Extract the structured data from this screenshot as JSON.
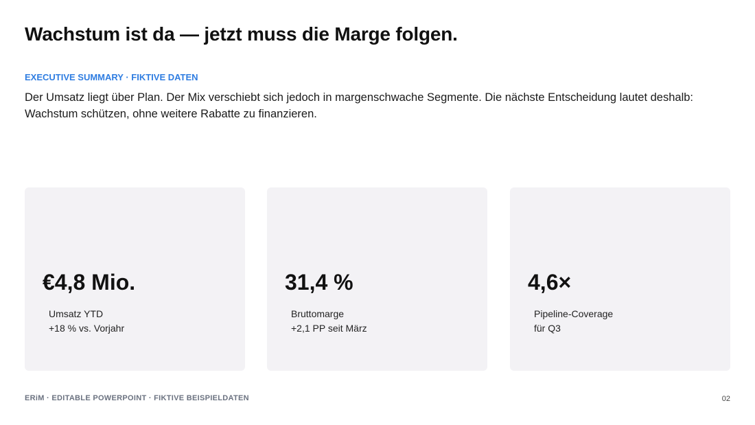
{
  "header": {
    "title": "Wachstum ist da — jetzt muss die Marge folgen.",
    "eyebrow": "EXECUTIVE SUMMARY · FIKTIVE DATEN",
    "body": "Der Umsatz liegt über Plan. Der Mix verschiebt sich jedoch in margenschwache Segmente. Die nächste Entscheidung lautet deshalb: Wachstum schützen, ohne weitere Rabatte zu finanzieren."
  },
  "cards": [
    {
      "value": "€4,8 Mio.",
      "label": "Umsatz YTD",
      "note": "+18 % vs. Vorjahr"
    },
    {
      "value": "31,4 %",
      "label": "Bruttomarge",
      "note": "+2,1 PP seit März"
    },
    {
      "value": "4,6×",
      "label": "Pipeline-Coverage",
      "note": "für Q3"
    }
  ],
  "footer": {
    "source": "ERiM · EDITABLE POWERPOINT · FIKTIVE BEISPIELDATEN",
    "page": "02"
  }
}
